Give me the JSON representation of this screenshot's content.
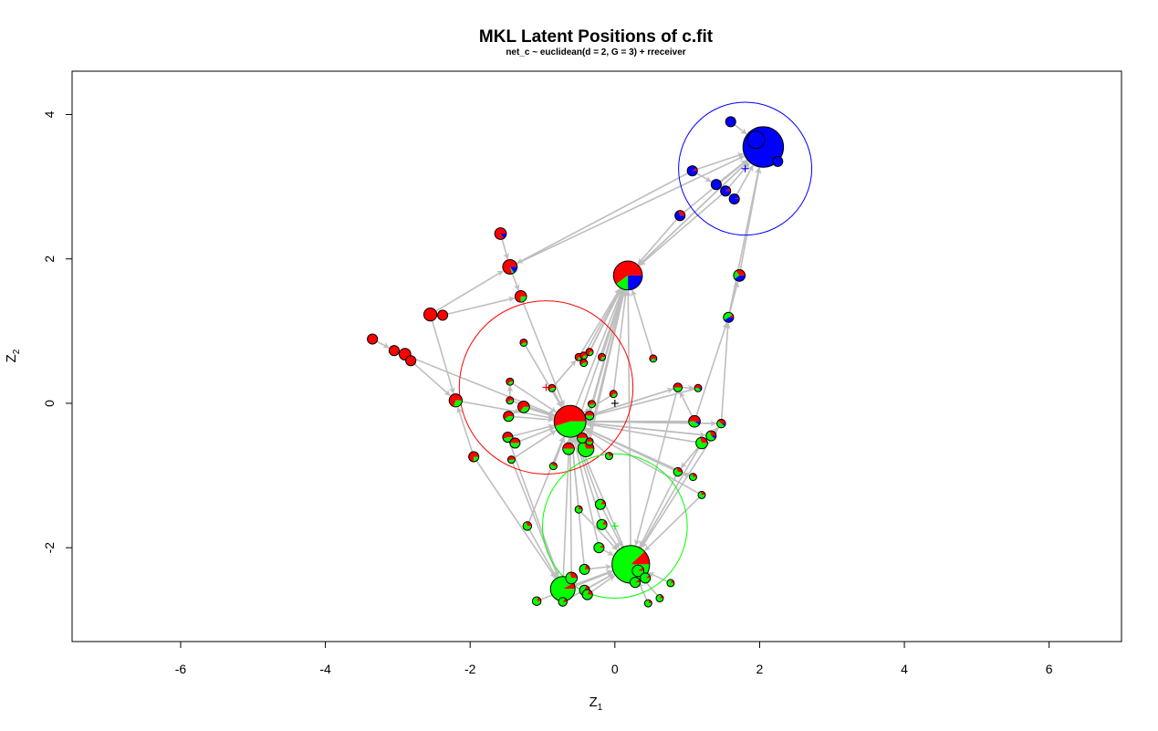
{
  "chart_data": {
    "type": "scatter",
    "title": "MKL Latent Positions of c.fit",
    "subtitle": "net_c ~ euclidean(d = 2, G = 3) + rreceiver",
    "xlabel": "Z",
    "xlabel_sub": "1",
    "ylabel": "Z",
    "ylabel_sub": "2",
    "xlim": [
      -7.5,
      7
    ],
    "ylim": [
      -3.3,
      4.6
    ],
    "xticks": [
      -6,
      -4,
      -2,
      0,
      2,
      4,
      6
    ],
    "yticks": [
      -2,
      0,
      2,
      4
    ],
    "grid": false,
    "legend": "none",
    "colors": {
      "group1": "#ff0000",
      "group2": "#00ff00",
      "group3": "#0000ff",
      "edge": "#bebebe",
      "axis": "#000000"
    },
    "clusters": [
      {
        "group": 1,
        "center": [
          -0.95,
          0.22
        ],
        "radius": 1.2
      },
      {
        "group": 2,
        "center": [
          0.0,
          -1.7
        ],
        "radius": 1.0
      },
      {
        "group": 3,
        "center": [
          1.8,
          3.25
        ],
        "radius": 0.92
      }
    ],
    "nodes": [
      {
        "x": 2.05,
        "y": 3.55,
        "r": 0.28,
        "p": [
          0,
          0,
          1
        ]
      },
      {
        "x": 1.6,
        "y": 3.9,
        "r": 0.07,
        "p": [
          0,
          0,
          1
        ]
      },
      {
        "x": 1.07,
        "y": 3.22,
        "r": 0.07,
        "p": [
          0.1,
          0,
          0.9
        ]
      },
      {
        "x": 1.4,
        "y": 3.03,
        "r": 0.07,
        "p": [
          0,
          0,
          1
        ]
      },
      {
        "x": 1.53,
        "y": 2.94,
        "r": 0.07,
        "p": [
          0.1,
          0,
          0.9
        ]
      },
      {
        "x": 1.65,
        "y": 2.83,
        "r": 0.07,
        "p": [
          0.05,
          0,
          0.95
        ]
      },
      {
        "x": 0.9,
        "y": 2.6,
        "r": 0.07,
        "p": [
          0.3,
          0,
          0.7
        ]
      },
      {
        "x": 2.25,
        "y": 3.35,
        "r": 0.07,
        "p": [
          0,
          0,
          1
        ]
      },
      {
        "x": 1.95,
        "y": 3.65,
        "r": 0.12,
        "p": [
          0,
          0,
          1
        ]
      },
      {
        "x": 1.72,
        "y": 1.77,
        "r": 0.08,
        "p": [
          0.35,
          0.25,
          0.4
        ]
      },
      {
        "x": 1.57,
        "y": 1.19,
        "r": 0.07,
        "p": [
          0.1,
          0.5,
          0.4
        ]
      },
      {
        "x": 0.18,
        "y": 1.77,
        "r": 0.2,
        "p": [
          0.6,
          0.15,
          0.25
        ]
      },
      {
        "x": -0.62,
        "y": -0.25,
        "r": 0.22,
        "p": [
          0.55,
          0.45,
          0
        ]
      },
      {
        "x": 0.22,
        "y": -2.23,
        "r": 0.26,
        "p": [
          0.12,
          0.88,
          0
        ]
      },
      {
        "x": -0.72,
        "y": -2.57,
        "r": 0.17,
        "p": [
          0.08,
          0.92,
          0
        ]
      },
      {
        "x": -1.58,
        "y": 2.35,
        "r": 0.08,
        "p": [
          0.85,
          0,
          0.15
        ]
      },
      {
        "x": -1.45,
        "y": 1.89,
        "r": 0.1,
        "p": [
          0.8,
          0.05,
          0.15
        ]
      },
      {
        "x": -1.3,
        "y": 1.48,
        "r": 0.08,
        "p": [
          0.75,
          0.25,
          0
        ]
      },
      {
        "x": -2.55,
        "y": 1.23,
        "r": 0.09,
        "p": [
          1,
          0,
          0
        ]
      },
      {
        "x": -2.38,
        "y": 1.22,
        "r": 0.07,
        "p": [
          1,
          0,
          0
        ]
      },
      {
        "x": -3.35,
        "y": 0.89,
        "r": 0.07,
        "p": [
          1,
          0,
          0
        ]
      },
      {
        "x": -3.05,
        "y": 0.73,
        "r": 0.07,
        "p": [
          1,
          0,
          0
        ]
      },
      {
        "x": -2.9,
        "y": 0.68,
        "r": 0.08,
        "p": [
          1,
          0,
          0
        ]
      },
      {
        "x": -2.82,
        "y": 0.59,
        "r": 0.07,
        "p": [
          1,
          0,
          0
        ]
      },
      {
        "x": -2.2,
        "y": 0.04,
        "r": 0.09,
        "p": [
          0.7,
          0.3,
          0
        ]
      },
      {
        "x": -1.95,
        "y": -0.74,
        "r": 0.07,
        "p": [
          0.75,
          0.25,
          0
        ]
      },
      {
        "x": -1.26,
        "y": 0.84,
        "r": 0.05,
        "p": [
          0.6,
          0.4,
          0
        ]
      },
      {
        "x": -1.45,
        "y": 0.3,
        "r": 0.05,
        "p": [
          0.65,
          0.35,
          0
        ]
      },
      {
        "x": -1.45,
        "y": 0.04,
        "r": 0.05,
        "p": [
          0.6,
          0.4,
          0
        ]
      },
      {
        "x": -1.47,
        "y": -0.18,
        "r": 0.07,
        "p": [
          0.6,
          0.4,
          0
        ]
      },
      {
        "x": -1.26,
        "y": -0.05,
        "r": 0.08,
        "p": [
          0.65,
          0.35,
          0
        ]
      },
      {
        "x": -1.48,
        "y": -0.47,
        "r": 0.07,
        "p": [
          0.55,
          0.45,
          0
        ]
      },
      {
        "x": -1.38,
        "y": -0.55,
        "r": 0.07,
        "p": [
          0.5,
          0.5,
          0
        ]
      },
      {
        "x": -1.43,
        "y": -0.78,
        "r": 0.05,
        "p": [
          0.55,
          0.45,
          0
        ]
      },
      {
        "x": -0.87,
        "y": 0.21,
        "r": 0.05,
        "p": [
          0.6,
          0.4,
          0
        ]
      },
      {
        "x": -0.5,
        "y": 0.64,
        "r": 0.05,
        "p": [
          0.7,
          0.3,
          0
        ]
      },
      {
        "x": -0.43,
        "y": 0.66,
        "r": 0.05,
        "p": [
          0.7,
          0.3,
          0
        ]
      },
      {
        "x": -0.35,
        "y": 0.71,
        "r": 0.05,
        "p": [
          0.75,
          0.25,
          0
        ]
      },
      {
        "x": -0.43,
        "y": 0.56,
        "r": 0.05,
        "p": [
          0.6,
          0.4,
          0
        ]
      },
      {
        "x": -0.18,
        "y": 0.64,
        "r": 0.05,
        "p": [
          0.7,
          0.3,
          0
        ]
      },
      {
        "x": 0.53,
        "y": 0.62,
        "r": 0.05,
        "p": [
          0.6,
          0.35,
          0.05
        ]
      },
      {
        "x": -0.02,
        "y": 0.13,
        "r": 0.05,
        "p": [
          0.65,
          0.35,
          0
        ]
      },
      {
        "x": -0.32,
        "y": -0.01,
        "r": 0.05,
        "p": [
          0.55,
          0.45,
          0
        ]
      },
      {
        "x": -0.35,
        "y": -0.17,
        "r": 0.06,
        "p": [
          0.5,
          0.5,
          0
        ]
      },
      {
        "x": -0.45,
        "y": -0.48,
        "r": 0.07,
        "p": [
          0.5,
          0.5,
          0
        ]
      },
      {
        "x": -0.35,
        "y": -0.53,
        "r": 0.05,
        "p": [
          0.5,
          0.5,
          0
        ]
      },
      {
        "x": -0.64,
        "y": -0.63,
        "r": 0.08,
        "p": [
          0.5,
          0.5,
          0
        ]
      },
      {
        "x": -0.4,
        "y": -0.63,
        "r": 0.11,
        "p": [
          0.3,
          0.7,
          0
        ]
      },
      {
        "x": -0.08,
        "y": -0.73,
        "r": 0.05,
        "p": [
          0.3,
          0.7,
          0
        ]
      },
      {
        "x": -0.85,
        "y": -0.87,
        "r": 0.05,
        "p": [
          0.35,
          0.65,
          0
        ]
      },
      {
        "x": 0.87,
        "y": 0.22,
        "r": 0.06,
        "p": [
          0.5,
          0.5,
          0
        ]
      },
      {
        "x": 1.15,
        "y": 0.21,
        "r": 0.05,
        "p": [
          0.5,
          0.4,
          0.1
        ]
      },
      {
        "x": 1.1,
        "y": -0.25,
        "r": 0.08,
        "p": [
          0.5,
          0.4,
          0.1
        ]
      },
      {
        "x": 1.47,
        "y": -0.28,
        "r": 0.06,
        "p": [
          0.4,
          0.5,
          0.1
        ]
      },
      {
        "x": 1.33,
        "y": -0.45,
        "r": 0.07,
        "p": [
          0.3,
          0.6,
          0.1
        ]
      },
      {
        "x": 1.2,
        "y": -0.55,
        "r": 0.08,
        "p": [
          0.3,
          0.7,
          0
        ]
      },
      {
        "x": 0.87,
        "y": -0.95,
        "r": 0.06,
        "p": [
          0.3,
          0.7,
          0
        ]
      },
      {
        "x": 1.08,
        "y": -1.02,
        "r": 0.05,
        "p": [
          0.3,
          0.7,
          0
        ]
      },
      {
        "x": 1.2,
        "y": -1.27,
        "r": 0.05,
        "p": [
          0.3,
          0.7,
          0
        ]
      },
      {
        "x": -0.2,
        "y": -1.4,
        "r": 0.07,
        "p": [
          0.15,
          0.85,
          0
        ]
      },
      {
        "x": -0.5,
        "y": -1.47,
        "r": 0.05,
        "p": [
          0.25,
          0.75,
          0
        ]
      },
      {
        "x": -0.18,
        "y": -1.68,
        "r": 0.07,
        "p": [
          0.15,
          0.85,
          0
        ]
      },
      {
        "x": -1.21,
        "y": -1.7,
        "r": 0.06,
        "p": [
          0.3,
          0.7,
          0
        ]
      },
      {
        "x": -0.22,
        "y": -2.0,
        "r": 0.07,
        "p": [
          0.1,
          0.9,
          0
        ]
      },
      {
        "x": -0.42,
        "y": -2.3,
        "r": 0.07,
        "p": [
          0.2,
          0.8,
          0
        ]
      },
      {
        "x": -0.6,
        "y": -2.42,
        "r": 0.08,
        "p": [
          0.3,
          0.7,
          0
        ]
      },
      {
        "x": 0.77,
        "y": -2.49,
        "r": 0.05,
        "p": [
          0.2,
          0.8,
          0
        ]
      },
      {
        "x": -0.42,
        "y": -2.59,
        "r": 0.07,
        "p": [
          0.2,
          0.8,
          0
        ]
      },
      {
        "x": -0.38,
        "y": -2.65,
        "r": 0.07,
        "p": [
          0.2,
          0.8,
          0
        ]
      },
      {
        "x": 0.62,
        "y": -2.7,
        "r": 0.05,
        "p": [
          0.2,
          0.8,
          0
        ]
      },
      {
        "x": -0.72,
        "y": -2.75,
        "r": 0.06,
        "p": [
          0.15,
          0.85,
          0
        ]
      },
      {
        "x": -1.08,
        "y": -2.74,
        "r": 0.06,
        "p": [
          0.2,
          0.8,
          0
        ]
      },
      {
        "x": 0.46,
        "y": -2.77,
        "r": 0.05,
        "p": [
          0.2,
          0.8,
          0
        ]
      },
      {
        "x": 0.32,
        "y": -2.32,
        "r": 0.08,
        "p": [
          0.1,
          0.9,
          0
        ]
      },
      {
        "x": 0.42,
        "y": -2.42,
        "r": 0.07,
        "p": [
          0.1,
          0.9,
          0
        ]
      },
      {
        "x": 0.28,
        "y": -2.48,
        "r": 0.07,
        "p": [
          0.1,
          0.9,
          0
        ]
      }
    ],
    "edges": [
      [
        1,
        0
      ],
      [
        2,
        0
      ],
      [
        3,
        0
      ],
      [
        4,
        0
      ],
      [
        5,
        0
      ],
      [
        6,
        0
      ],
      [
        7,
        0
      ],
      [
        8,
        0
      ],
      [
        9,
        0
      ],
      [
        10,
        0
      ],
      [
        11,
        0
      ],
      [
        16,
        0
      ],
      [
        2,
        3
      ],
      [
        3,
        4
      ],
      [
        6,
        11
      ],
      [
        0,
        11
      ],
      [
        4,
        11
      ],
      [
        2,
        16
      ],
      [
        10,
        9
      ],
      [
        53,
        10
      ],
      [
        52,
        10
      ],
      [
        15,
        16
      ],
      [
        16,
        17
      ],
      [
        17,
        12
      ],
      [
        18,
        16
      ],
      [
        19,
        17
      ],
      [
        20,
        21
      ],
      [
        21,
        22
      ],
      [
        22,
        23
      ],
      [
        23,
        24
      ],
      [
        24,
        12
      ],
      [
        21,
        12
      ],
      [
        25,
        24
      ],
      [
        18,
        24
      ],
      [
        26,
        12
      ],
      [
        27,
        12
      ],
      [
        28,
        12
      ],
      [
        29,
        12
      ],
      [
        30,
        12
      ],
      [
        31,
        12
      ],
      [
        32,
        12
      ],
      [
        33,
        12
      ],
      [
        34,
        12
      ],
      [
        35,
        11
      ],
      [
        36,
        11
      ],
      [
        37,
        11
      ],
      [
        38,
        11
      ],
      [
        39,
        11
      ],
      [
        40,
        11
      ],
      [
        41,
        11
      ],
      [
        42,
        11
      ],
      [
        43,
        11
      ],
      [
        44,
        11
      ],
      [
        12,
        11
      ],
      [
        45,
        11
      ],
      [
        46,
        11
      ],
      [
        47,
        11
      ],
      [
        47,
        12
      ],
      [
        48,
        12
      ],
      [
        49,
        12
      ],
      [
        41,
        12
      ],
      [
        50,
        12
      ],
      [
        51,
        12
      ],
      [
        52,
        12
      ],
      [
        53,
        12
      ],
      [
        54,
        12
      ],
      [
        55,
        12
      ],
      [
        56,
        12
      ],
      [
        57,
        12
      ],
      [
        58,
        12
      ],
      [
        59,
        12
      ],
      [
        60,
        12
      ],
      [
        61,
        12
      ],
      [
        62,
        12
      ],
      [
        63,
        12
      ],
      [
        64,
        12
      ],
      [
        65,
        12
      ],
      [
        14,
        12
      ],
      [
        13,
        12
      ],
      [
        13,
        11
      ],
      [
        50,
        13
      ],
      [
        53,
        13
      ],
      [
        56,
        13
      ],
      [
        58,
        13
      ],
      [
        55,
        13
      ],
      [
        59,
        13
      ],
      [
        61,
        13
      ],
      [
        63,
        13
      ],
      [
        64,
        13
      ],
      [
        14,
        13
      ],
      [
        66,
        13
      ],
      [
        67,
        13
      ],
      [
        68,
        13
      ],
      [
        69,
        13
      ],
      [
        70,
        13
      ],
      [
        71,
        13
      ],
      [
        72,
        13
      ],
      [
        73,
        13
      ],
      [
        74,
        13
      ],
      [
        75,
        13
      ],
      [
        65,
        14
      ],
      [
        62,
        14
      ],
      [
        25,
        14
      ],
      [
        31,
        14
      ],
      [
        33,
        14
      ],
      [
        57,
        56
      ],
      [
        55,
        56
      ],
      [
        54,
        53
      ],
      [
        52,
        50
      ],
      [
        50,
        51
      ],
      [
        12,
        53
      ],
      [
        12,
        50
      ],
      [
        12,
        54
      ],
      [
        60,
        13
      ],
      [
        30,
        29
      ],
      [
        28,
        27
      ],
      [
        34,
        35
      ],
      [
        12,
        47
      ],
      [
        45,
        47
      ]
    ]
  }
}
